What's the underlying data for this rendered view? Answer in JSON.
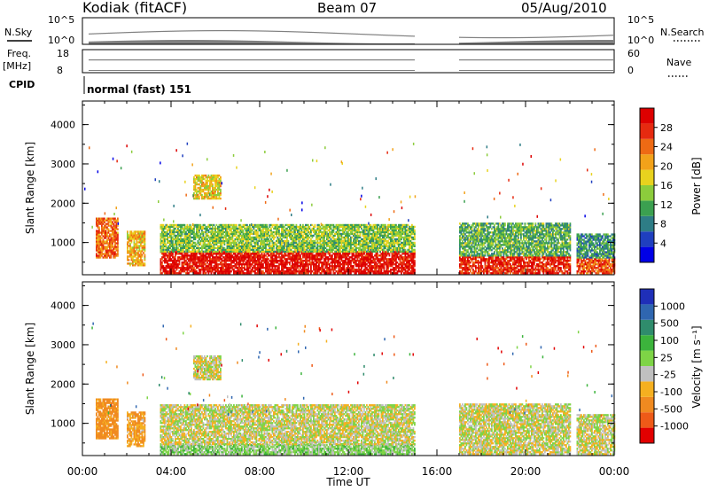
{
  "header": {
    "station": "Kodiak (fitACF)",
    "beam": "Beam 07",
    "date": "05/Aug/2010"
  },
  "top_panels": {
    "nsky_label": "N.Sky",
    "nsearch_label": "N.Search",
    "noise_ticks": [
      "10^5",
      "10^0"
    ],
    "freq_label_line1": "Freq.",
    "freq_label_line2": "[MHz]",
    "freq_ticks": [
      "18",
      "8"
    ],
    "nave_ticks": [
      "60",
      "0"
    ],
    "nave_label": "Nave",
    "cpid_label": "CPID",
    "cpid_text": "normal (fast) 151"
  },
  "axes": {
    "x_ticks": [
      "00:00",
      "04:00",
      "08:00",
      "12:00",
      "16:00",
      "20:00",
      "00:00"
    ],
    "x_label": "Time UT",
    "y_ticks": [
      "1000",
      "2000",
      "3000",
      "4000"
    ],
    "y_label": "Slant Range [km]"
  },
  "power_scale": {
    "label": "Power [dB]",
    "ticks": [
      "4",
      "8",
      "12",
      "16",
      "20",
      "24",
      "28"
    ],
    "colors": [
      "#0000e6",
      "#1f3fbf",
      "#2e7d86",
      "#3ba050",
      "#8ccc3c",
      "#e8d21e",
      "#f2a21a",
      "#ee6a14",
      "#e62a10",
      "#dd0000"
    ]
  },
  "velocity_scale": {
    "label": "Velocity [m s⁻¹]",
    "ticks": [
      "1000",
      "500",
      "100",
      "25",
      "-25",
      "-100",
      "-500",
      "-1000"
    ],
    "colors": [
      "#1f2fb8",
      "#2f66b0",
      "#2f8c6c",
      "#3cb43c",
      "#7ed446",
      "#c0c0c0",
      "#f5b020",
      "#f08a20",
      "#ee5a18",
      "#e20000"
    ]
  },
  "chart_data": {
    "type": "heatmap",
    "title": "Kodiak (fitACF)",
    "subtitle": "Beam 07",
    "date": "05/Aug/2010",
    "x_unit": "hours UT",
    "xlim": [
      0,
      24
    ],
    "ylim": [
      180,
      4600
    ],
    "panels": [
      {
        "name": "Power [dB]",
        "ylabel": "Slant Range [km]",
        "xlabel": "",
        "clim": [
          0,
          32
        ],
        "regions": [
          {
            "t": [
              0.6,
              1.6
            ],
            "r": [
              600,
              1600
            ],
            "v": 24
          },
          {
            "t": [
              2.0,
              2.8
            ],
            "r": [
              400,
              1300
            ],
            "v": 20
          },
          {
            "t": [
              3.5,
              15.0
            ],
            "r": [
              200,
              750
            ],
            "v": 30
          },
          {
            "t": [
              3.5,
              15.0
            ],
            "r": [
              750,
              1450
            ],
            "v": 14
          },
          {
            "t": [
              5.0,
              6.2
            ],
            "r": [
              2100,
              2700
            ],
            "v": 18
          },
          {
            "t": [
              17.0,
              22.0
            ],
            "r": [
              200,
              650
            ],
            "v": 28
          },
          {
            "t": [
              17.0,
              22.0
            ],
            "r": [
              650,
              1500
            ],
            "v": 12
          },
          {
            "t": [
              22.3,
              24.0
            ],
            "r": [
              200,
              600
            ],
            "v": 26
          },
          {
            "t": [
              22.3,
              24.0
            ],
            "r": [
              600,
              1200
            ],
            "v": 10
          }
        ]
      },
      {
        "name": "Velocity [m s⁻¹]",
        "ylabel": "Slant Range [km]",
        "xlabel": "Time UT",
        "clim": [
          -1000,
          1000
        ],
        "regions": [
          {
            "t": [
              0.6,
              1.6
            ],
            "r": [
              600,
              1600
            ],
            "v": -150
          },
          {
            "t": [
              2.0,
              2.8
            ],
            "r": [
              400,
              1300
            ],
            "v": -100
          },
          {
            "t": [
              3.5,
              15.0
            ],
            "r": [
              200,
              450
            ],
            "v": 60
          },
          {
            "t": [
              3.5,
              15.0
            ],
            "r": [
              450,
              1450
            ],
            "v": 0
          },
          {
            "t": [
              5.0,
              6.2
            ],
            "r": [
              2100,
              2700
            ],
            "v": 0
          },
          {
            "t": [
              17.0,
              22.0
            ],
            "r": [
              200,
              1500
            ],
            "v": 0
          },
          {
            "t": [
              22.3,
              24.0
            ],
            "r": [
              200,
              1200
            ],
            "v": 0
          }
        ]
      }
    ],
    "data_gap_hours": [
      15.0,
      17.0
    ]
  }
}
